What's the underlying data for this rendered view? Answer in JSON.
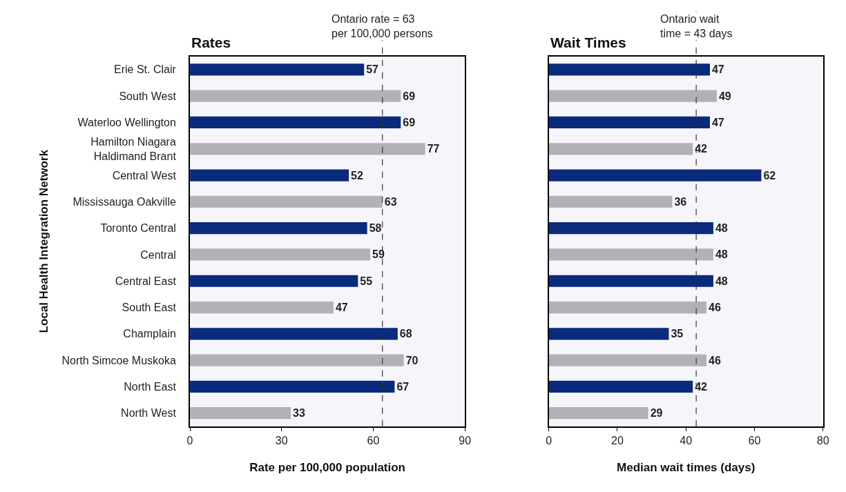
{
  "chart_data": [
    {
      "type": "bar",
      "orientation": "horizontal",
      "title": "Rates",
      "xlabel": "Rate per 100,000 population",
      "ylabel": "Local Health Integration Network",
      "categories": [
        "Erie St. Clair",
        "South West",
        "Waterloo Wellington",
        "Hamilton Niagara Haldimand Brant",
        "Central West",
        "Mississauga Oakville",
        "Toronto Central",
        "Central",
        "Central East",
        "South East",
        "Champlain",
        "North Simcoe Muskoka",
        "North East",
        "North West"
      ],
      "values": [
        57,
        69,
        69,
        77,
        52,
        63,
        58,
        59,
        55,
        47,
        68,
        70,
        67,
        33
      ],
      "colors": [
        "#0a2a7c",
        "#b1b1b8",
        "#0a2a7c",
        "#b1b1b8",
        "#0a2a7c",
        "#b1b1b8",
        "#0a2a7c",
        "#b1b1b8",
        "#0a2a7c",
        "#b1b1b8",
        "#0a2a7c",
        "#b1b1b8",
        "#0a2a7c",
        "#b1b1b8"
      ],
      "xlim": [
        0,
        90
      ],
      "xticks": [
        0,
        30,
        60,
        90
      ],
      "data_labels": true,
      "grid": false,
      "ref_lines": [
        {
          "axis": "x",
          "value": 63,
          "label": "Ontario rate = 63 per 100,000 persons",
          "color": "#333333",
          "line_style": "dashed"
        }
      ]
    },
    {
      "type": "bar",
      "orientation": "horizontal",
      "title": "Wait Times",
      "xlabel": "Median wait times (days)",
      "categories": [
        null,
        null,
        null,
        null,
        null,
        null,
        null,
        null,
        null,
        null,
        null,
        null,
        null,
        null
      ],
      "values": [
        47,
        49,
        47,
        42,
        62,
        36,
        48,
        48,
        48,
        46,
        35,
        46,
        42,
        29
      ],
      "colors": [
        "#0a2a7c",
        "#b1b1b8",
        "#0a2a7c",
        "#b1b1b8",
        "#0a2a7c",
        "#b1b1b8",
        "#0a2a7c",
        "#b1b1b8",
        "#0a2a7c",
        "#b1b1b8",
        "#0a2a7c",
        "#b1b1b8",
        "#0a2a7c",
        "#b1b1b8"
      ],
      "xlim": [
        0,
        80
      ],
      "xticks": [
        0,
        20,
        40,
        60,
        80
      ],
      "data_labels": true,
      "grid": false,
      "tick_labels": "x",
      "ref_lines": [
        {
          "axis": "x",
          "value": 43,
          "label": "Ontario wait time = 43 days",
          "color": "#333333",
          "line_style": "dashed"
        }
      ]
    }
  ]
}
